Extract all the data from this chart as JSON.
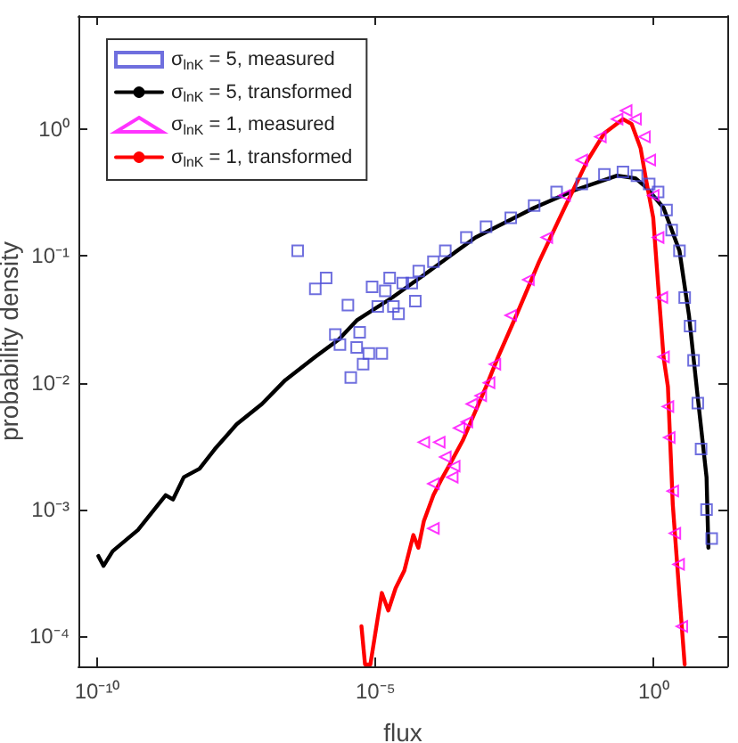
{
  "chart_data": {
    "type": "scatter",
    "xlabel": "flux",
    "ylabel": "probability density",
    "log": "xy",
    "grid": false,
    "legend": "top left",
    "xlim": [
      4.6e-11,
      21
    ],
    "ylim": [
      5.8e-05,
      7.8
    ],
    "xticks": [
      {
        "value": 1e-10,
        "label": "10⁻¹⁰"
      },
      {
        "value": 1e-05,
        "label": "10⁻⁵"
      },
      {
        "value": 1,
        "label": "10⁰"
      }
    ],
    "yticks": [
      {
        "value": 0.0001,
        "label": "10⁻⁴"
      },
      {
        "value": 0.001,
        "label": "10⁻³"
      },
      {
        "value": 0.01,
        "label": "10⁻²"
      },
      {
        "value": 0.1,
        "label": "10⁻¹"
      },
      {
        "value": 1,
        "label": "10⁰"
      }
    ],
    "series": [
      {
        "name": "σ$_{lnK}$ = 5, measured",
        "marker": "square",
        "color": "#4b4bd6",
        "x": [
          4e-07,
          8.3e-07,
          1.3e-06,
          3.2e-06,
          1.9e-06,
          2.3e-06,
          5.2e-06,
          4.6e-06,
          3.6e-06,
          6e-06,
          7.6e-06,
          1.3e-05,
          8.7e-06,
          1.5e-05,
          1.8e-05,
          1.1e-05,
          2.1e-05,
          2.6e-05,
          3.1e-05,
          4.5e-05,
          5.2e-05,
          6e-05,
          0.00011,
          0.00018,
          0.00043,
          0.00097,
          0.0027,
          0.0071,
          0.018,
          0.051,
          0.13,
          0.28,
          0.5,
          0.83,
          1.2,
          1.7,
          2.1,
          2.9,
          3.6,
          4.5,
          5.2,
          6.2,
          7.1,
          8.9,
          11
        ],
        "values": [
          0.11,
          0.055,
          0.067,
          0.041,
          0.024,
          0.02,
          0.025,
          0.019,
          0.011,
          0.014,
          0.017,
          0.017,
          0.057,
          0.053,
          0.067,
          0.04,
          0.04,
          0.035,
          0.061,
          0.061,
          0.044,
          0.076,
          0.09,
          0.11,
          0.14,
          0.17,
          0.2,
          0.25,
          0.32,
          0.37,
          0.44,
          0.46,
          0.43,
          0.37,
          0.32,
          0.23,
          0.16,
          0.11,
          0.047,
          0.028,
          0.015,
          0.0069,
          0.003,
          0.001,
          0.00059
        ]
      },
      {
        "name": "σ$_{lnK}$ = 5, transformed",
        "type": "line",
        "marker": "none",
        "line_style": "solid",
        "color": "#000000",
        "x": [
          1.05e-10,
          1.3e-10,
          1.9e-10,
          5.4e-10,
          1.7e-09,
          2.3e-09,
          3.6e-09,
          6.9e-09,
          1.3e-08,
          3.2e-08,
          9.1e-08,
          2.4e-07,
          8.3e-07,
          2.2e-06,
          4.6e-06,
          2e-05,
          8.5e-05,
          0.00063,
          0.0071,
          0.038,
          0.22,
          0.47,
          0.72,
          1.5,
          2.9,
          4.3,
          6.2,
          8.9,
          9.6
        ],
        "values": [
          0.00043,
          0.00036,
          0.00047,
          0.00069,
          0.0013,
          0.0012,
          0.0018,
          0.0021,
          0.003,
          0.0047,
          0.0068,
          0.0105,
          0.016,
          0.022,
          0.031,
          0.047,
          0.074,
          0.14,
          0.24,
          0.33,
          0.43,
          0.41,
          0.35,
          0.24,
          0.11,
          0.034,
          0.0076,
          0.0018,
          0.0005
        ]
      },
      {
        "name": "σ$_{lnK}$ = 1, measured",
        "marker": "triangle",
        "color": "#ff00ff",
        "x": [
          7.4e-05,
          0.00014,
          0.00011,
          0.00011,
          0.00018,
          0.00026,
          0.00024,
          0.00032,
          0.00044,
          0.00054,
          0.00078,
          0.0011,
          0.0014,
          0.0027,
          0.0056,
          0.012,
          0.025,
          0.051,
          0.11,
          0.22,
          0.32,
          0.47,
          0.68,
          0.85,
          0.98,
          1.2,
          1.4,
          1.5,
          1.8,
          1.9,
          2.2,
          2.4,
          2.8,
          3.2
        ],
        "values": [
          0.0034,
          0.0034,
          0.0016,
          0.00071,
          0.0026,
          0.0022,
          0.0018,
          0.0044,
          0.0049,
          0.0068,
          0.0079,
          0.01,
          0.014,
          0.034,
          0.065,
          0.14,
          0.3,
          0.57,
          0.87,
          1.2,
          1.4,
          1.2,
          0.87,
          0.57,
          0.3,
          0.14,
          0.047,
          0.016,
          0.0065,
          0.0037,
          0.0014,
          0.00065,
          0.00037,
          0.00012
        ]
      },
      {
        "name": "σ$_{lnK}$ = 1, transformed",
        "type": "line",
        "marker": "none",
        "line_style": "solid",
        "color": "#ff0000",
        "x": [
          5.6e-06,
          6.5e-06,
          8.1e-06,
          1.1e-05,
          1.3e-05,
          1.7e-05,
          2.3e-05,
          3.3e-05,
          4.8e-05,
          5.9e-05,
          7.4e-05,
          0.00011,
          0.00015,
          0.00022,
          0.00037,
          0.00063,
          0.00097,
          0.0016,
          0.0034,
          0.0087,
          0.025,
          0.065,
          0.13,
          0.28,
          0.4,
          0.58,
          0.72,
          0.98,
          1.2,
          1.5,
          1.8,
          2.2,
          2.9,
          3.6
        ],
        "values": [
          0.00012,
          6e-05,
          6e-05,
          0.00014,
          0.00022,
          0.00016,
          0.00024,
          0.00033,
          0.00063,
          0.0005,
          0.00081,
          0.0013,
          0.0017,
          0.0023,
          0.0035,
          0.006,
          0.0093,
          0.016,
          0.034,
          0.09,
          0.24,
          0.57,
          0.93,
          1.2,
          1.1,
          0.71,
          0.41,
          0.2,
          0.059,
          0.016,
          0.0093,
          0.0011,
          0.00021,
          6e-05
        ]
      }
    ]
  }
}
